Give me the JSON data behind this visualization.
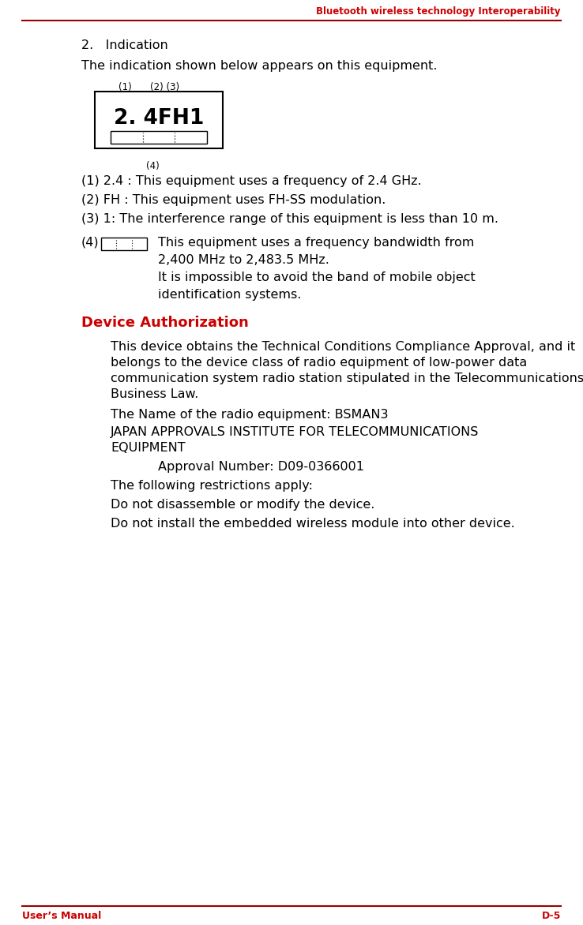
{
  "header_text": "Bluetooth wireless technology Interoperability",
  "header_color": "#CC0000",
  "footer_left": "User’s Manual",
  "footer_right": "D-5",
  "footer_color": "#CC0000",
  "line_color": "#9B0000",
  "bg_color": "#ffffff",
  "body_color": "#000000",
  "section_heading": "2.   Indication",
  "intro_text": "The indication shown below appears on this equipment.",
  "diagram_label1": "(1)",
  "diagram_label23": "(2) (3)",
  "diagram_label4": "(4)",
  "diagram_text": "2. 4FH1",
  "items": [
    "(1) 2.4 : This equipment uses a frequency of 2.4 GHz.",
    "(2) FH : This equipment uses FH-SS modulation.",
    "(3) 1: The interference range of this equipment is less than 10 m."
  ],
  "item4_label": "(4)",
  "item4_text1": "This equipment uses a frequency bandwidth from",
  "item4_text2": "2,400 MHz to 2,483.5 MHz.",
  "item4_text3": "It is impossible to avoid the band of mobile object",
  "item4_text4": "identification systems.",
  "device_auth_title": "Device Authorization",
  "device_auth_color": "#CC0000",
  "para1_lines": [
    "This device obtains the Technical Conditions Compliance Approval, and it",
    "belongs to the device class of radio equipment of low-power data",
    "communication system radio station stipulated in the Telecommunications",
    "Business Law."
  ],
  "para2": "The Name of the radio equipment: BSMAN3",
  "para3_lines": [
    "JAPAN APPROVALS INSTITUTE FOR TELECOMMUNICATIONS",
    "EQUIPMENT"
  ],
  "para4": "Approval Number: D09-0366001",
  "para5": "The following restrictions apply:",
  "para6": "Do not disassemble or modify the device.",
  "para7": "Do not install the embedded wireless module into other device."
}
